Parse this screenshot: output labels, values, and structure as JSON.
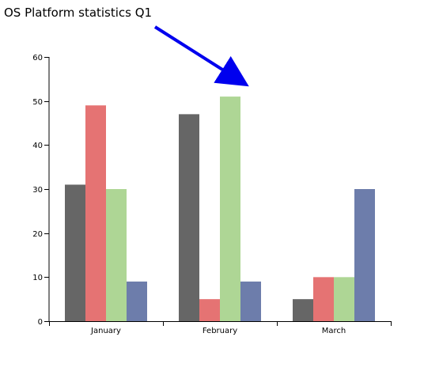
{
  "chart_data": {
    "type": "bar",
    "title": "OS Platform statistics Q1",
    "categories": [
      "January",
      "February",
      "March"
    ],
    "series": [
      {
        "values": [
          31,
          47,
          5
        ],
        "color": "#666666"
      },
      {
        "values": [
          49,
          5,
          10
        ],
        "color": "#e57373"
      },
      {
        "values": [
          30,
          51,
          10
        ],
        "color": "#aed695"
      },
      {
        "values": [
          9,
          9,
          30
        ],
        "color": "#6d7dab"
      }
    ],
    "ylim": [
      0,
      60
    ],
    "yticks": [
      0,
      10,
      20,
      30,
      40,
      50,
      60
    ],
    "xlabel": "",
    "ylabel": "",
    "grid": false,
    "legend": "none",
    "annotation": {
      "type": "arrow",
      "color": "#0000ee",
      "points_to": "title"
    }
  }
}
